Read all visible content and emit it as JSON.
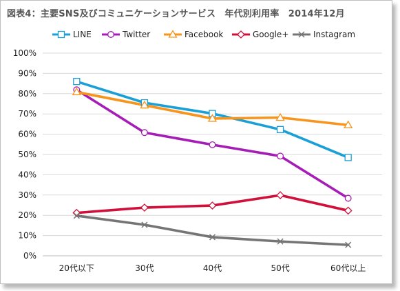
{
  "chart_data": {
    "type": "line",
    "title": "図表4：主要SNS及びコミュニケーションサービス　年代別利用率　2014年12月",
    "categories": [
      "20代以下",
      "30代",
      "40代",
      "50代",
      "60代以上"
    ],
    "ylim": [
      0,
      100
    ],
    "y_ticks": [
      "0%",
      "10%",
      "20%",
      "30%",
      "40%",
      "50%",
      "60%",
      "70%",
      "80%",
      "90%",
      "100%"
    ],
    "grid": true,
    "legend_position": "top",
    "series": [
      {
        "name": "LINE",
        "color": "#1a9fd6",
        "marker": "square",
        "values": [
          86,
          75.5,
          70.2,
          62.3,
          48.5
        ]
      },
      {
        "name": "Twitter",
        "color": "#a51db6",
        "marker": "circle",
        "values": [
          81.9,
          60.8,
          54.8,
          49.2,
          28.4
        ]
      },
      {
        "name": "Facebook",
        "color": "#f7941d",
        "marker": "triangle",
        "values": [
          80.8,
          74.3,
          67.7,
          68.2,
          64.5
        ]
      },
      {
        "name": "Google+",
        "color": "#d0103a",
        "marker": "diamond",
        "values": [
          21.2,
          23.8,
          24.8,
          29.9,
          22.3
        ]
      },
      {
        "name": "Instagram",
        "color": "#757575",
        "marker": "x",
        "values": [
          19.8,
          15.3,
          9.2,
          7.1,
          5.4
        ]
      }
    ]
  }
}
